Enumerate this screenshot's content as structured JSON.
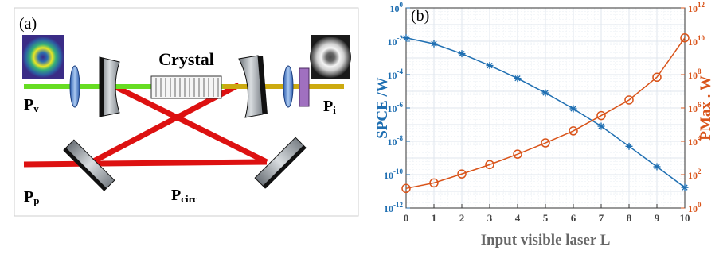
{
  "panel_a": {
    "label": "(a)",
    "crystal_label": "Crystal",
    "pv": {
      "main": "P",
      "sub": "v"
    },
    "pi": {
      "main": "P",
      "sub": "i"
    },
    "pp": {
      "main": "P",
      "sub": "p"
    },
    "pcirc": {
      "main": "P",
      "sub": "circ"
    },
    "colors": {
      "pump_beam": "#dd1111",
      "visible_beam": "#66dd22",
      "idler_beam": "#ccaa10",
      "mirror": "#9aa0a6",
      "lens": "#5b8ed6",
      "filter": "#a070c0"
    }
  },
  "panel_b": {
    "label": "(b)",
    "chart_data": {
      "type": "line",
      "x": [
        0,
        1,
        2,
        3,
        4,
        5,
        6,
        7,
        8,
        9,
        10
      ],
      "xlabel": "Input visible laser L",
      "xlim": [
        0,
        10
      ],
      "x_ticks": [
        "0",
        "1",
        "2",
        "3",
        "4",
        "5",
        "6",
        "7",
        "8",
        "9",
        "10"
      ],
      "left_axis": {
        "label": "SPCE /W",
        "scale": "log",
        "ylim": [
          1e-12,
          1
        ],
        "ticks": [
          {
            "value": 1.0,
            "base": "10",
            "exp": "0"
          },
          {
            "value": 0.01,
            "base": "10",
            "exp": "-2"
          },
          {
            "value": 0.0001,
            "base": "10",
            "exp": "-4"
          },
          {
            "value": 1e-06,
            "base": "10",
            "exp": "-6"
          },
          {
            "value": 1e-08,
            "base": "10",
            "exp": "-8"
          },
          {
            "value": 1e-10,
            "base": "10",
            "exp": "-10"
          },
          {
            "value": 1e-12,
            "base": "10",
            "exp": "-12"
          }
        ],
        "color": "#1f6fb2"
      },
      "right_axis": {
        "label": "PMax . W",
        "scale": "log",
        "ylim": [
          1,
          1000000000000.0
        ],
        "ticks": [
          {
            "value": 1.0,
            "base": "10",
            "exp": "0"
          },
          {
            "value": 100.0,
            "base": "10",
            "exp": "2"
          },
          {
            "value": 10000.0,
            "base": "10",
            "exp": "4"
          },
          {
            "value": 1000000.0,
            "base": "10",
            "exp": "6"
          },
          {
            "value": 100000000.0,
            "base": "10",
            "exp": "8"
          },
          {
            "value": 10000000000.0,
            "base": "10",
            "exp": "10"
          },
          {
            "value": 1000000000000.0,
            "base": "10",
            "exp": "12"
          }
        ],
        "color": "#d95319"
      },
      "series": [
        {
          "axis": "left",
          "marker": "asterisk",
          "color": "#1f6fb2",
          "values": [
            0.016,
            0.007,
            0.0018,
            0.00035,
            6e-05,
            8e-06,
            9e-07,
            8e-08,
            5e-09,
            3e-10,
            1.7e-11
          ]
        },
        {
          "axis": "right",
          "marker": "circle",
          "color": "#d95319",
          "values": [
            15,
            32,
            110,
            400,
            1700,
            8000,
            42000,
            350000,
            3000000,
            70000000,
            16000000000.0
          ]
        }
      ],
      "grid": true
    }
  }
}
